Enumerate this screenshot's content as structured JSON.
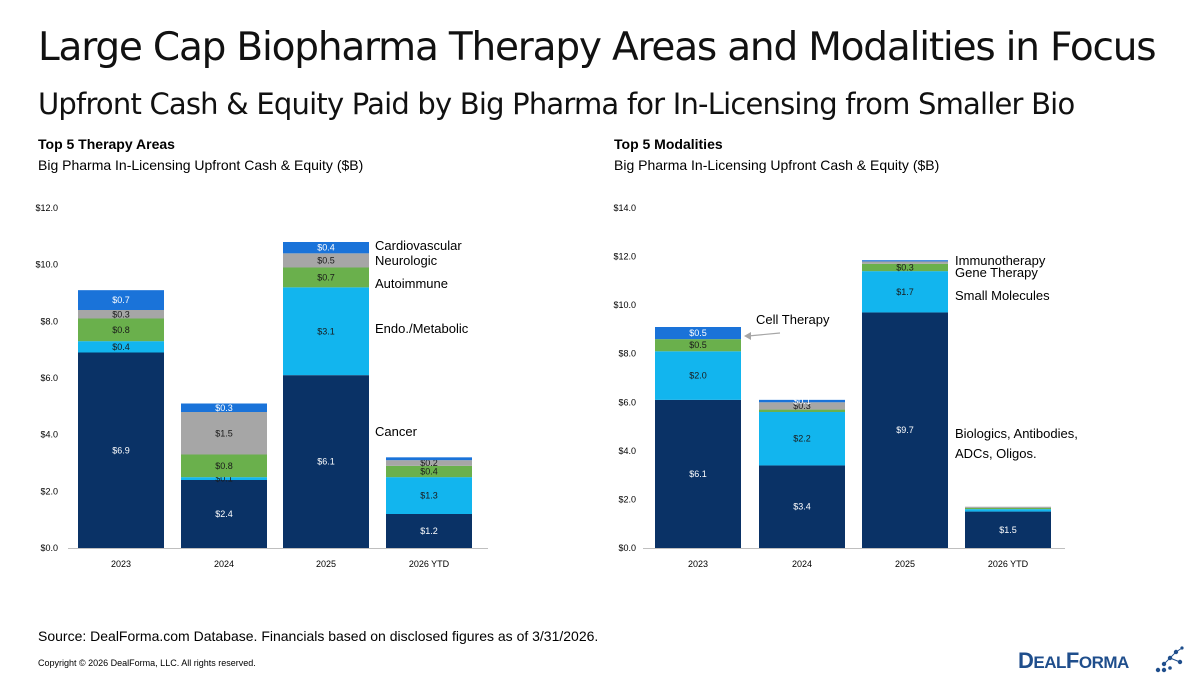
{
  "header": {
    "title": "Large Cap Biopharma Therapy Areas and Modalities in Focus",
    "subtitle": "Upfront Cash & Equity Paid by Big Pharma for In-Licensing from Smaller Bio"
  },
  "panels": [
    {
      "title": "Top 5 Therapy Areas",
      "subtitle": "Big Pharma In-Licensing Upfront Cash & Equity ($B)"
    },
    {
      "title": "Top 5 Modalities",
      "subtitle": "Big Pharma In-Licensing Upfront Cash & Equity ($B)"
    }
  ],
  "chart_data": [
    {
      "type": "bar",
      "stacked": true,
      "categories": [
        "2023",
        "2024",
        "2025",
        "2026 YTD"
      ],
      "ylim": [
        0,
        12
      ],
      "yticks": [
        "$0.0",
        "$2.0",
        "$4.0",
        "$6.0",
        "$8.0",
        "$10.0",
        "$12.0"
      ],
      "series": [
        {
          "name": "Cancer",
          "color": "#0a3266",
          "values": [
            6.9,
            2.4,
            6.1,
            1.2
          ],
          "labels": [
            "$6.9",
            "$2.4",
            "$6.1",
            "$1.2"
          ]
        },
        {
          "name": "Endo./Metabolic",
          "color": "#12b5ee",
          "values": [
            0.4,
            0.1,
            3.1,
            1.3
          ],
          "labels": [
            "$0.4",
            "$0.1",
            "$3.1",
            "$1.3"
          ]
        },
        {
          "name": "Autoimmune",
          "color": "#6ab04c",
          "values": [
            0.8,
            0.8,
            0.7,
            0.4
          ],
          "labels": [
            "$0.8",
            "$0.8",
            "$0.7",
            "$0.4"
          ]
        },
        {
          "name": "Neurologic",
          "color": "#a6a6a6",
          "values": [
            0.3,
            1.5,
            0.5,
            0.2
          ],
          "labels": [
            "$0.3",
            "$1.5",
            "$0.5",
            "$0.2"
          ]
        },
        {
          "name": "Cardiovascular",
          "color": "#1a73d9",
          "values": [
            0.7,
            0.3,
            0.4,
            0.1
          ],
          "labels": [
            "$0.7",
            "$0.3",
            "$0.4",
            ""
          ]
        }
      ]
    },
    {
      "type": "bar",
      "stacked": true,
      "categories": [
        "2023",
        "2024",
        "2025",
        "2026 YTD"
      ],
      "ylim": [
        0,
        14
      ],
      "yticks": [
        "$0.0",
        "$2.0",
        "$4.0",
        "$6.0",
        "$8.0",
        "$10.0",
        "$12.0",
        "$14.0"
      ],
      "series": [
        {
          "name": "Biologics, Antibodies, ADCs, Oligos.",
          "color": "#0a3266",
          "values": [
            6.1,
            3.4,
            9.7,
            1.5
          ],
          "labels": [
            "$6.1",
            "$3.4",
            "$9.7",
            "$1.5"
          ]
        },
        {
          "name": "Small Molecules",
          "color": "#12b5ee",
          "values": [
            2.0,
            2.2,
            1.7,
            0.1
          ],
          "labels": [
            "$2.0",
            "$2.2",
            "$1.7",
            ""
          ]
        },
        {
          "name": "Gene Therapy",
          "color": "#6ab04c",
          "values": [
            0.5,
            0.1,
            0.3,
            0.05
          ],
          "labels": [
            "$0.5",
            "",
            "$0.3",
            ""
          ]
        },
        {
          "name": "Immunotherapy",
          "color": "#a6a6a6",
          "values": [
            0.0,
            0.3,
            0.1,
            0.05
          ],
          "labels": [
            "",
            "$0.3",
            "",
            ""
          ]
        },
        {
          "name": "Cell Therapy",
          "color": "#1a73d9",
          "values": [
            0.5,
            0.1,
            0.05,
            0.0
          ],
          "labels": [
            "$0.5",
            "$0.1",
            "",
            ""
          ]
        }
      ]
    }
  ],
  "footer": {
    "source": "Source: DealForma.com Database. Financials based on disclosed figures as of 3/31/2026.",
    "copyright": "Copyright © 2026 DealForma, LLC. All rights reserved.",
    "logo_text": "DealForma"
  }
}
